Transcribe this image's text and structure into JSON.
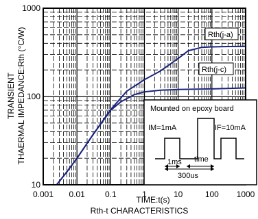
{
  "chart_data": {
    "type": "line",
    "title": "",
    "xlabel": "TIME:t(s)",
    "ylabel_line1": "TRANSIENT",
    "ylabel_line2": "THAERMAL IMPEDANCE:Rth (°C/W)",
    "caption": "Rth-t CHARACTERISTICS",
    "xscale": "log",
    "yscale": "log",
    "xlim": [
      0.001,
      1000
    ],
    "ylim": [
      10,
      1000
    ],
    "grid": true,
    "x_tick_labels": [
      "0.001",
      "0.01",
      "0.1",
      "1",
      "10",
      "100",
      "1000"
    ],
    "y_tick_labels": [
      "10",
      "100",
      "1000"
    ],
    "x_ticks": [
      0.001,
      0.01,
      0.1,
      1,
      10,
      100,
      1000
    ],
    "y_ticks": [
      10,
      100,
      1000
    ],
    "series": [
      {
        "name": "Rth(j-a)",
        "color": "#1a237e",
        "x": [
          0.0025,
          0.005,
          0.01,
          0.03,
          0.1,
          0.3,
          1,
          3,
          10,
          20,
          50,
          100,
          300,
          1000
        ],
        "y": [
          10,
          14,
          20,
          37,
          71,
          115,
          155,
          195,
          270,
          330,
          360,
          365,
          368,
          370
        ]
      },
      {
        "name": "Rth(j-c)",
        "color": "#1a237e",
        "x": [
          0.0025,
          0.005,
          0.01,
          0.03,
          0.1,
          0.2,
          0.5,
          1,
          3,
          10,
          100,
          1000
        ],
        "y": [
          10,
          14,
          20,
          37,
          70,
          87,
          105,
          113,
          118,
          120,
          122,
          125
        ]
      }
    ],
    "annotation": {
      "box_title": "Mounted on epoxy board",
      "im_label": "IM=1mA",
      "if_label": "IF=10mA",
      "t1_label": "1ms",
      "time_label": "time",
      "period_label": "300us"
    }
  }
}
